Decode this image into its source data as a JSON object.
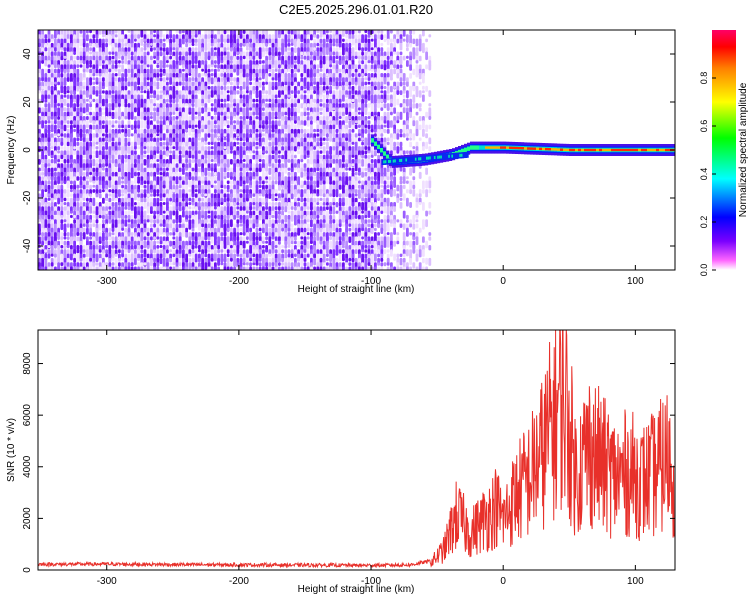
{
  "title": "C2E5.2025.296.01.01.R20",
  "chart_data": [
    {
      "type": "heatmap",
      "xlabel": "Height of straight line (km)",
      "ylabel": "Frequency (Hz)",
      "xlim": [
        -352,
        130
      ],
      "ylim": [
        -50,
        50
      ],
      "xticks": [
        -300,
        -200,
        -100,
        0,
        100
      ],
      "yticks": [
        -40,
        -20,
        0,
        20,
        40
      ],
      "grid": false,
      "colorbar": {
        "label": "Normalized spectral amplitude",
        "range": [
          0,
          1
        ],
        "ticks": [
          "0.0",
          "0.2",
          "0.4",
          "0.6",
          "0.8"
        ],
        "colors": [
          "#ffffff",
          "#ff00ff",
          "#6a00ff",
          "#0000ff",
          "#00ffff",
          "#00ff00",
          "#ffff00",
          "#ff8000",
          "#ff0000",
          "#ff0066"
        ]
      },
      "features": {
        "noise_region_x": [
          -352,
          -100
        ],
        "noise_fade_x": [
          -100,
          -55
        ],
        "signal_line_x": [
          -100,
          130
        ],
        "signal_frequency_hz": [
          {
            "x": -100,
            "f": 4
          },
          {
            "x": -85,
            "f": -5
          },
          {
            "x": -60,
            "f": -4
          },
          {
            "x": -40,
            "f": -2
          },
          {
            "x": -25,
            "f": 1
          },
          {
            "x": 0,
            "f": 1
          },
          {
            "x": 50,
            "f": 0
          },
          {
            "x": 130,
            "f": 0
          }
        ]
      }
    },
    {
      "type": "line",
      "xlabel": "Height of straight line (km)",
      "ylabel": "SNR (10 * v/v)",
      "xlim": [
        -352,
        130
      ],
      "ylim": [
        0,
        9300
      ],
      "xticks": [
        -300,
        -200,
        -100,
        0,
        100
      ],
      "yticks": [
        0,
        2000,
        4000,
        6000,
        8000
      ],
      "grid": false,
      "color": "#e8302a",
      "x": [
        -352,
        -300,
        -250,
        -200,
        -150,
        -100,
        -70,
        -55,
        -45,
        -35,
        -25,
        -15,
        -5,
        0,
        10,
        20,
        30,
        40,
        45,
        55,
        65,
        75,
        85,
        95,
        105,
        115,
        125,
        130
      ],
      "y": [
        220,
        230,
        210,
        200,
        190,
        180,
        200,
        350,
        1000,
        2800,
        1800,
        2500,
        3200,
        2500,
        3800,
        4600,
        5900,
        7800,
        9100,
        4800,
        6100,
        5300,
        4600,
        4900,
        4400,
        4800,
        5600,
        4500
      ]
    }
  ]
}
